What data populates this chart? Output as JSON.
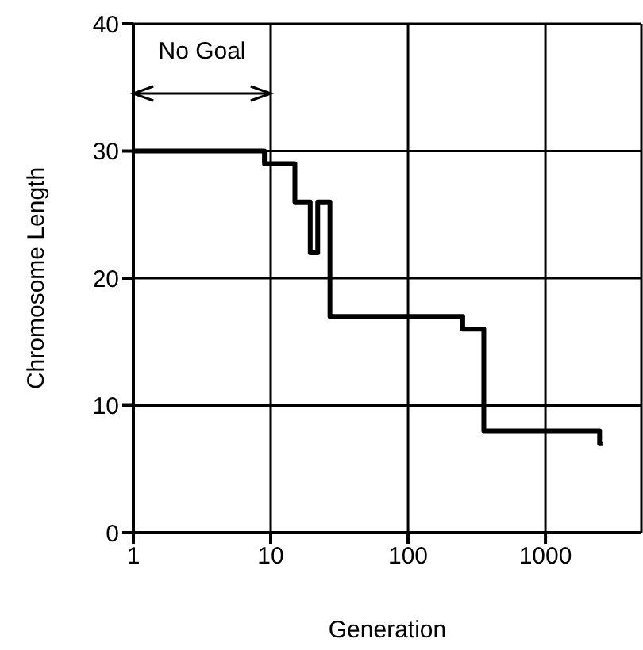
{
  "chart_data": {
    "type": "step",
    "xlabel": "Generation",
    "ylabel": "Chromosome Length",
    "log": "x",
    "grid": true,
    "xlim": [
      1,
      5000
    ],
    "xticks": [
      1,
      10,
      100,
      1000
    ],
    "ylim": [
      0,
      40
    ],
    "yticks": [
      0,
      10,
      20,
      30,
      40
    ],
    "x": [
      1,
      9,
      15,
      19.4,
      22,
      27,
      250,
      356,
      2480,
      2600
    ],
    "series": [
      {
        "color": "#000000",
        "values": [
          30,
          29,
          26,
          22,
          26,
          17,
          16,
          8,
          7,
          7
        ]
      }
    ],
    "annotations": [
      "No Goal"
    ]
  }
}
